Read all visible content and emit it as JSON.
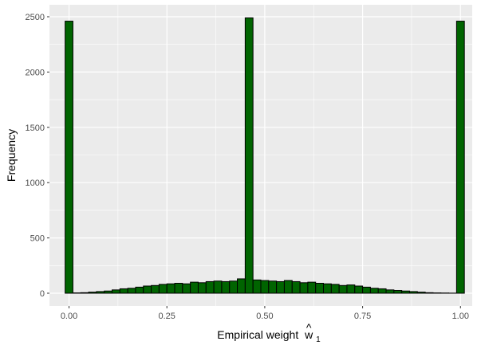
{
  "chart_data": {
    "type": "bar",
    "title": "",
    "xlabel": "Empirical weight",
    "xlabel_symbol": "w",
    "xlabel_hat": "^",
    "xlabel_subscript": "1",
    "ylabel": "Frequency",
    "xlim": [
      -0.05,
      1.03
    ],
    "ylim": [
      0,
      2500
    ],
    "x_ticks": [
      0,
      0.25,
      0.5,
      0.75,
      1
    ],
    "x_tick_labels": [
      "0.00",
      "0.25",
      "0.50",
      "0.75",
      "1.00"
    ],
    "y_ticks": [
      0,
      500,
      1000,
      1500,
      2000,
      2500
    ],
    "y_tick_labels": [
      "0",
      "500",
      "1000",
      "1500",
      "2000",
      "2500"
    ],
    "grid": true,
    "bin_width": 0.02,
    "bin_starts": [
      -0.01,
      0.01,
      0.03,
      0.05,
      0.07,
      0.09,
      0.11,
      0.13,
      0.15,
      0.17,
      0.19,
      0.21,
      0.23,
      0.25,
      0.27,
      0.29,
      0.31,
      0.33,
      0.35,
      0.37,
      0.39,
      0.41,
      0.43,
      0.45,
      0.47,
      0.49,
      0.51,
      0.53,
      0.55,
      0.57,
      0.59,
      0.61,
      0.63,
      0.65,
      0.67,
      0.69,
      0.71,
      0.73,
      0.75,
      0.77,
      0.79,
      0.81,
      0.83,
      0.85,
      0.87,
      0.89,
      0.91,
      0.93,
      0.95,
      0.97,
      0.99
    ],
    "values": [
      2460,
      3,
      5,
      10,
      15,
      20,
      30,
      40,
      45,
      55,
      65,
      70,
      80,
      85,
      90,
      85,
      100,
      95,
      105,
      110,
      105,
      110,
      130,
      2490,
      120,
      115,
      110,
      105,
      115,
      105,
      95,
      100,
      90,
      85,
      80,
      70,
      75,
      65,
      55,
      45,
      40,
      30,
      25,
      20,
      15,
      10,
      5,
      3,
      2,
      1,
      2460
    ],
    "fill_color": "#006400",
    "stroke_color": "#000000",
    "panel_background": "#ebebeb",
    "grid_major_color": "#ffffff"
  }
}
